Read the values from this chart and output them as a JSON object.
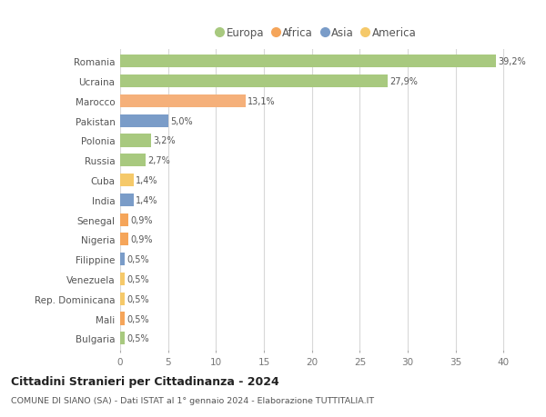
{
  "categories": [
    "Bulgaria",
    "Mali",
    "Rep. Dominicana",
    "Venezuela",
    "Filippine",
    "Nigeria",
    "Senegal",
    "India",
    "Cuba",
    "Russia",
    "Polonia",
    "Pakistan",
    "Marocco",
    "Ucraina",
    "Romania"
  ],
  "values": [
    0.5,
    0.5,
    0.5,
    0.5,
    0.5,
    0.9,
    0.9,
    1.4,
    1.4,
    2.7,
    3.2,
    5.0,
    13.1,
    27.9,
    39.2
  ],
  "labels": [
    "0,5%",
    "0,5%",
    "0,5%",
    "0,5%",
    "0,5%",
    "0,9%",
    "0,9%",
    "1,4%",
    "1,4%",
    "2,7%",
    "3,2%",
    "5,0%",
    "13,1%",
    "27,9%",
    "39,2%"
  ],
  "colors": [
    "#a8c97f",
    "#f5a55a",
    "#f5c96a",
    "#f5c96a",
    "#7a9cc8",
    "#f5a55a",
    "#f5a55a",
    "#7a9cc8",
    "#f5c96a",
    "#a8c97f",
    "#a8c97f",
    "#7a9cc8",
    "#f5b07a",
    "#a8c97f",
    "#a8c97f"
  ],
  "legend": [
    {
      "label": "Europa",
      "color": "#a8c97f"
    },
    {
      "label": "Africa",
      "color": "#f5a55a"
    },
    {
      "label": "Asia",
      "color": "#7a9cc8"
    },
    {
      "label": "America",
      "color": "#f5c96a"
    }
  ],
  "xlim": [
    0,
    41
  ],
  "xticks": [
    0,
    5,
    10,
    15,
    20,
    25,
    30,
    35,
    40
  ],
  "title": "Cittadini Stranieri per Cittadinanza - 2024",
  "subtitle": "COMUNE DI SIANO (SA) - Dati ISTAT al 1° gennaio 2024 - Elaborazione TUTTITALIA.IT",
  "background_color": "#ffffff",
  "grid_color": "#d8d8d8",
  "bar_height": 0.65
}
